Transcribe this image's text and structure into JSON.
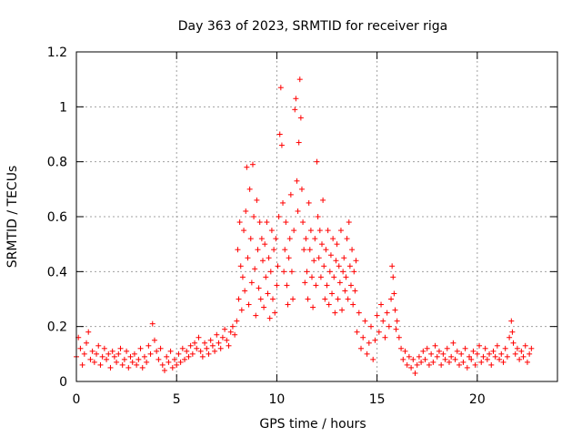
{
  "chart_data": {
    "type": "scatter",
    "title": "Day 363 of 2023, SRMTID for receiver riga",
    "xlabel": "GPS time / hours",
    "ylabel": "SRMTID / TECUs",
    "xlim": [
      0,
      24
    ],
    "ylim": [
      0,
      1.2
    ],
    "xticks": [
      0,
      5,
      10,
      15,
      20
    ],
    "xtick_labels": [
      "0",
      "5",
      "10",
      "15",
      "20"
    ],
    "yticks": [
      0,
      0.2,
      0.4,
      0.6,
      0.8,
      1.0,
      1.2
    ],
    "ytick_labels": [
      "0",
      "0.2",
      "0.4",
      "0.6",
      "0.8",
      "1",
      "1.2"
    ],
    "grid": true,
    "marker": "+",
    "color": "#ff0000",
    "series": [
      {
        "name": "SRMTID",
        "points": [
          [
            0.0,
            0.09
          ],
          [
            0.1,
            0.16
          ],
          [
            0.2,
            0.12
          ],
          [
            0.3,
            0.06
          ],
          [
            0.4,
            0.1
          ],
          [
            0.5,
            0.14
          ],
          [
            0.6,
            0.18
          ],
          [
            0.7,
            0.08
          ],
          [
            0.8,
            0.11
          ],
          [
            0.9,
            0.07
          ],
          [
            1.0,
            0.1
          ],
          [
            1.1,
            0.13
          ],
          [
            1.2,
            0.06
          ],
          [
            1.3,
            0.09
          ],
          [
            1.4,
            0.12
          ],
          [
            1.5,
            0.08
          ],
          [
            1.6,
            0.1
          ],
          [
            1.7,
            0.05
          ],
          [
            1.8,
            0.11
          ],
          [
            1.9,
            0.09
          ],
          [
            2.0,
            0.07
          ],
          [
            2.1,
            0.1
          ],
          [
            2.2,
            0.12
          ],
          [
            2.3,
            0.06
          ],
          [
            2.4,
            0.08
          ],
          [
            2.5,
            0.11
          ],
          [
            2.6,
            0.05
          ],
          [
            2.7,
            0.09
          ],
          [
            2.8,
            0.07
          ],
          [
            2.9,
            0.1
          ],
          [
            3.0,
            0.06
          ],
          [
            3.1,
            0.08
          ],
          [
            3.2,
            0.12
          ],
          [
            3.3,
            0.05
          ],
          [
            3.4,
            0.09
          ],
          [
            3.5,
            0.07
          ],
          [
            3.6,
            0.13
          ],
          [
            3.7,
            0.1
          ],
          [
            3.8,
            0.21
          ],
          [
            3.9,
            0.15
          ],
          [
            4.0,
            0.11
          ],
          [
            4.1,
            0.08
          ],
          [
            4.2,
            0.12
          ],
          [
            4.3,
            0.06
          ],
          [
            4.4,
            0.04
          ],
          [
            4.5,
            0.09
          ],
          [
            4.6,
            0.07
          ],
          [
            4.7,
            0.11
          ],
          [
            4.8,
            0.05
          ],
          [
            4.9,
            0.08
          ],
          [
            5.0,
            0.06
          ],
          [
            5.1,
            0.1
          ],
          [
            5.2,
            0.07
          ],
          [
            5.3,
            0.12
          ],
          [
            5.4,
            0.08
          ],
          [
            5.5,
            0.11
          ],
          [
            5.6,
            0.09
          ],
          [
            5.7,
            0.13
          ],
          [
            5.8,
            0.1
          ],
          [
            5.9,
            0.14
          ],
          [
            6.0,
            0.12
          ],
          [
            6.1,
            0.16
          ],
          [
            6.2,
            0.11
          ],
          [
            6.3,
            0.09
          ],
          [
            6.4,
            0.14
          ],
          [
            6.5,
            0.12
          ],
          [
            6.6,
            0.1
          ],
          [
            6.7,
            0.15
          ],
          [
            6.8,
            0.13
          ],
          [
            6.9,
            0.11
          ],
          [
            7.0,
            0.17
          ],
          [
            7.1,
            0.14
          ],
          [
            7.2,
            0.12
          ],
          [
            7.3,
            0.16
          ],
          [
            7.4,
            0.19
          ],
          [
            7.5,
            0.15
          ],
          [
            7.6,
            0.13
          ],
          [
            7.7,
            0.18
          ],
          [
            7.8,
            0.2
          ],
          [
            7.9,
            0.17
          ],
          [
            8.0,
            0.22
          ],
          [
            8.05,
            0.48
          ],
          [
            8.1,
            0.3
          ],
          [
            8.15,
            0.58
          ],
          [
            8.2,
            0.42
          ],
          [
            8.25,
            0.26
          ],
          [
            8.3,
            0.38
          ],
          [
            8.35,
            0.55
          ],
          [
            8.4,
            0.33
          ],
          [
            8.45,
            0.62
          ],
          [
            8.5,
            0.78
          ],
          [
            8.55,
            0.45
          ],
          [
            8.6,
            0.28
          ],
          [
            8.65,
            0.7
          ],
          [
            8.7,
            0.52
          ],
          [
            8.75,
            0.36
          ],
          [
            8.8,
            0.79
          ],
          [
            8.85,
            0.6
          ],
          [
            8.9,
            0.41
          ],
          [
            8.95,
            0.24
          ],
          [
            9.0,
            0.66
          ],
          [
            9.05,
            0.48
          ],
          [
            9.1,
            0.34
          ],
          [
            9.15,
            0.58
          ],
          [
            9.2,
            0.3
          ],
          [
            9.25,
            0.52
          ],
          [
            9.3,
            0.44
          ],
          [
            9.35,
            0.27
          ],
          [
            9.4,
            0.5
          ],
          [
            9.45,
            0.38
          ],
          [
            9.5,
            0.58
          ],
          [
            9.55,
            0.32
          ],
          [
            9.6,
            0.45
          ],
          [
            9.65,
            0.23
          ],
          [
            9.7,
            0.4
          ],
          [
            9.75,
            0.55
          ],
          [
            9.8,
            0.3
          ],
          [
            9.85,
            0.48
          ],
          [
            9.9,
            0.25
          ],
          [
            9.95,
            0.52
          ],
          [
            10.0,
            0.35
          ],
          [
            10.05,
            0.42
          ],
          [
            10.1,
            0.6
          ],
          [
            10.15,
            0.9
          ],
          [
            10.2,
            1.07
          ],
          [
            10.25,
            0.86
          ],
          [
            10.3,
            0.65
          ],
          [
            10.35,
            0.4
          ],
          [
            10.4,
            0.48
          ],
          [
            10.45,
            0.58
          ],
          [
            10.5,
            0.35
          ],
          [
            10.55,
            0.28
          ],
          [
            10.6,
            0.45
          ],
          [
            10.65,
            0.52
          ],
          [
            10.7,
            0.68
          ],
          [
            10.75,
            0.4
          ],
          [
            10.8,
            0.3
          ],
          [
            10.85,
            0.55
          ],
          [
            10.9,
            0.99
          ],
          [
            10.95,
            1.03
          ],
          [
            11.0,
            0.73
          ],
          [
            11.05,
            0.62
          ],
          [
            11.1,
            0.87
          ],
          [
            11.15,
            1.1
          ],
          [
            11.2,
            0.96
          ],
          [
            11.25,
            0.7
          ],
          [
            11.3,
            0.58
          ],
          [
            11.35,
            0.48
          ],
          [
            11.4,
            0.36
          ],
          [
            11.45,
            0.52
          ],
          [
            11.5,
            0.4
          ],
          [
            11.55,
            0.3
          ],
          [
            11.6,
            0.65
          ],
          [
            11.65,
            0.48
          ],
          [
            11.7,
            0.55
          ],
          [
            11.75,
            0.38
          ],
          [
            11.8,
            0.27
          ],
          [
            11.85,
            0.44
          ],
          [
            11.9,
            0.52
          ],
          [
            11.95,
            0.35
          ],
          [
            12.0,
            0.8
          ],
          [
            12.05,
            0.6
          ],
          [
            12.1,
            0.45
          ],
          [
            12.15,
            0.55
          ],
          [
            12.2,
            0.38
          ],
          [
            12.25,
            0.5
          ],
          [
            12.3,
            0.66
          ],
          [
            12.35,
            0.42
          ],
          [
            12.4,
            0.3
          ],
          [
            12.45,
            0.48
          ],
          [
            12.5,
            0.35
          ],
          [
            12.55,
            0.55
          ],
          [
            12.6,
            0.28
          ],
          [
            12.65,
            0.4
          ],
          [
            12.7,
            0.46
          ],
          [
            12.75,
            0.32
          ],
          [
            12.8,
            0.52
          ],
          [
            12.85,
            0.38
          ],
          [
            12.9,
            0.25
          ],
          [
            12.95,
            0.44
          ],
          [
            13.0,
            0.5
          ],
          [
            13.05,
            0.3
          ],
          [
            13.1,
            0.42
          ],
          [
            13.15,
            0.36
          ],
          [
            13.2,
            0.55
          ],
          [
            13.25,
            0.26
          ],
          [
            13.3,
            0.4
          ],
          [
            13.35,
            0.45
          ],
          [
            13.4,
            0.33
          ],
          [
            13.45,
            0.38
          ],
          [
            13.5,
            0.52
          ],
          [
            13.55,
            0.3
          ],
          [
            13.6,
            0.58
          ],
          [
            13.65,
            0.42
          ],
          [
            13.7,
            0.35
          ],
          [
            13.75,
            0.48
          ],
          [
            13.8,
            0.28
          ],
          [
            13.85,
            0.4
          ],
          [
            13.9,
            0.33
          ],
          [
            13.95,
            0.44
          ],
          [
            14.0,
            0.18
          ],
          [
            14.1,
            0.25
          ],
          [
            14.2,
            0.12
          ],
          [
            14.3,
            0.16
          ],
          [
            14.4,
            0.22
          ],
          [
            14.5,
            0.1
          ],
          [
            14.6,
            0.14
          ],
          [
            14.7,
            0.2
          ],
          [
            14.8,
            0.08
          ],
          [
            14.9,
            0.15
          ],
          [
            15.0,
            0.24
          ],
          [
            15.1,
            0.18
          ],
          [
            15.2,
            0.28
          ],
          [
            15.3,
            0.22
          ],
          [
            15.4,
            0.16
          ],
          [
            15.5,
            0.25
          ],
          [
            15.6,
            0.2
          ],
          [
            15.7,
            0.3
          ],
          [
            15.75,
            0.42
          ],
          [
            15.8,
            0.38
          ],
          [
            15.85,
            0.32
          ],
          [
            15.9,
            0.26
          ],
          [
            15.95,
            0.19
          ],
          [
            16.0,
            0.22
          ],
          [
            16.1,
            0.16
          ],
          [
            16.2,
            0.12
          ],
          [
            16.3,
            0.08
          ],
          [
            16.4,
            0.11
          ],
          [
            16.5,
            0.06
          ],
          [
            16.6,
            0.09
          ],
          [
            16.7,
            0.05
          ],
          [
            16.8,
            0.08
          ],
          [
            16.9,
            0.03
          ],
          [
            17.0,
            0.06
          ],
          [
            17.1,
            0.09
          ],
          [
            17.2,
            0.07
          ],
          [
            17.3,
            0.11
          ],
          [
            17.4,
            0.08
          ],
          [
            17.5,
            0.12
          ],
          [
            17.6,
            0.06
          ],
          [
            17.7,
            0.1
          ],
          [
            17.8,
            0.07
          ],
          [
            17.9,
            0.13
          ],
          [
            18.0,
            0.09
          ],
          [
            18.1,
            0.11
          ],
          [
            18.2,
            0.06
          ],
          [
            18.3,
            0.1
          ],
          [
            18.4,
            0.08
          ],
          [
            18.5,
            0.12
          ],
          [
            18.6,
            0.07
          ],
          [
            18.7,
            0.09
          ],
          [
            18.8,
            0.14
          ],
          [
            18.9,
            0.08
          ],
          [
            19.0,
            0.11
          ],
          [
            19.1,
            0.06
          ],
          [
            19.2,
            0.1
          ],
          [
            19.3,
            0.07
          ],
          [
            19.4,
            0.12
          ],
          [
            19.5,
            0.05
          ],
          [
            19.6,
            0.09
          ],
          [
            19.7,
            0.08
          ],
          [
            19.8,
            0.11
          ],
          [
            19.9,
            0.06
          ],
          [
            20.0,
            0.1
          ],
          [
            20.1,
            0.13
          ],
          [
            20.2,
            0.07
          ],
          [
            20.3,
            0.09
          ],
          [
            20.4,
            0.12
          ],
          [
            20.5,
            0.08
          ],
          [
            20.6,
            0.1
          ],
          [
            20.7,
            0.06
          ],
          [
            20.8,
            0.11
          ],
          [
            20.9,
            0.09
          ],
          [
            21.0,
            0.13
          ],
          [
            21.1,
            0.08
          ],
          [
            21.2,
            0.1
          ],
          [
            21.3,
            0.07
          ],
          [
            21.4,
            0.12
          ],
          [
            21.5,
            0.09
          ],
          [
            21.6,
            0.16
          ],
          [
            21.7,
            0.22
          ],
          [
            21.75,
            0.18
          ],
          [
            21.8,
            0.14
          ],
          [
            21.9,
            0.1
          ],
          [
            22.0,
            0.12
          ],
          [
            22.1,
            0.08
          ],
          [
            22.2,
            0.11
          ],
          [
            22.3,
            0.09
          ],
          [
            22.4,
            0.13
          ],
          [
            22.5,
            0.07
          ],
          [
            22.6,
            0.1
          ],
          [
            22.7,
            0.12
          ]
        ]
      }
    ]
  }
}
